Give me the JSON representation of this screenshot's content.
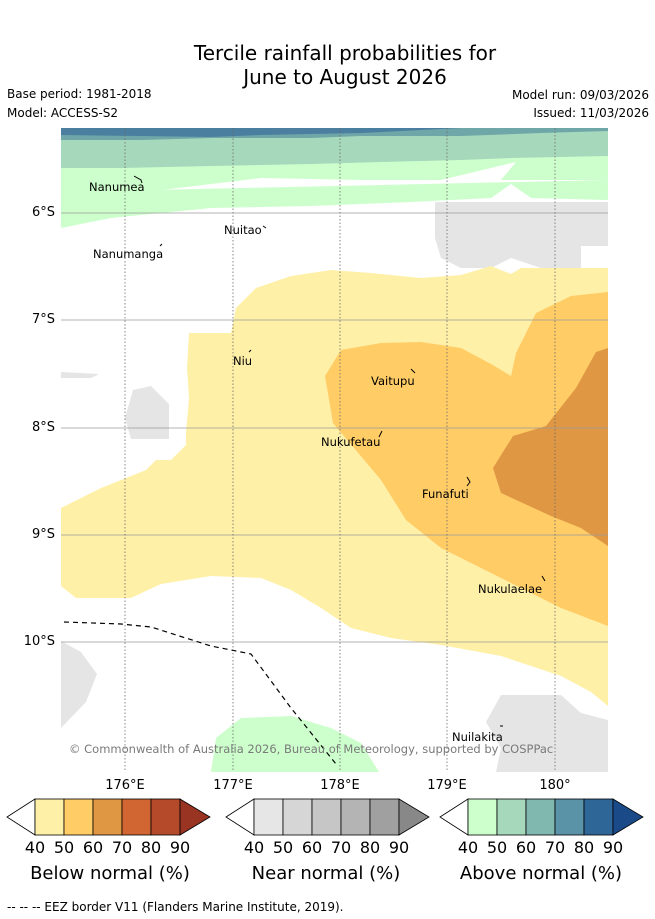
{
  "title": {
    "line1": "Tercile rainfall probabilities for",
    "line2": "June to August 2026"
  },
  "meta": {
    "base_period": "Base period: 1981-2018",
    "model": "Model: ACCESS-S2",
    "model_run": "Model run: 09/03/2026",
    "issued": "Issued: 11/03/2026"
  },
  "latitude_labels": [
    "6°S",
    "7°S",
    "8°S",
    "9°S",
    "10°S"
  ],
  "longitude_labels": [
    "176°E",
    "177°E",
    "178°E",
    "179°E",
    "180°"
  ],
  "places": {
    "nanumea": "Nanumea",
    "nuitao": "Nuitao",
    "nanumanga": "Nanumanga",
    "niu": "Niu",
    "vaitupu": "Vaitupu",
    "nukufetau": "Nukufetau",
    "funafuti": "Funafuti",
    "nukulaelae": "Nukulaelae",
    "nuilakita": "Nuilakita"
  },
  "copyright": "© Commonwealth of Australia 2026, Bureau of Meteorology, supported by COSPPac",
  "legends": {
    "below": {
      "title": "Below normal (%)",
      "ticks": [
        "40",
        "50",
        "60",
        "70",
        "80",
        "90"
      ],
      "colors": [
        "#fff0a8",
        "#ffcc66",
        "#e09744",
        "#d16632",
        "#b44a2a",
        "#993322"
      ]
    },
    "near": {
      "title": "Near normal (%)",
      "ticks": [
        "40",
        "50",
        "60",
        "70",
        "80",
        "90"
      ],
      "colors": [
        "#e6e6e6",
        "#d6d6d6",
        "#c6c6c6",
        "#b4b4b4",
        "#a0a0a0",
        "#888888"
      ]
    },
    "above": {
      "title": "Above normal (%)",
      "ticks": [
        "40",
        "50",
        "60",
        "70",
        "80",
        "90"
      ],
      "colors": [
        "#ccffcc",
        "#a6d8bb",
        "#80b8b0",
        "#5a92a8",
        "#2f6698",
        "#1a4a88"
      ]
    }
  },
  "footer": "--  --  -- EEZ border V11 (Flanders Marine Institute, 2019)."
}
